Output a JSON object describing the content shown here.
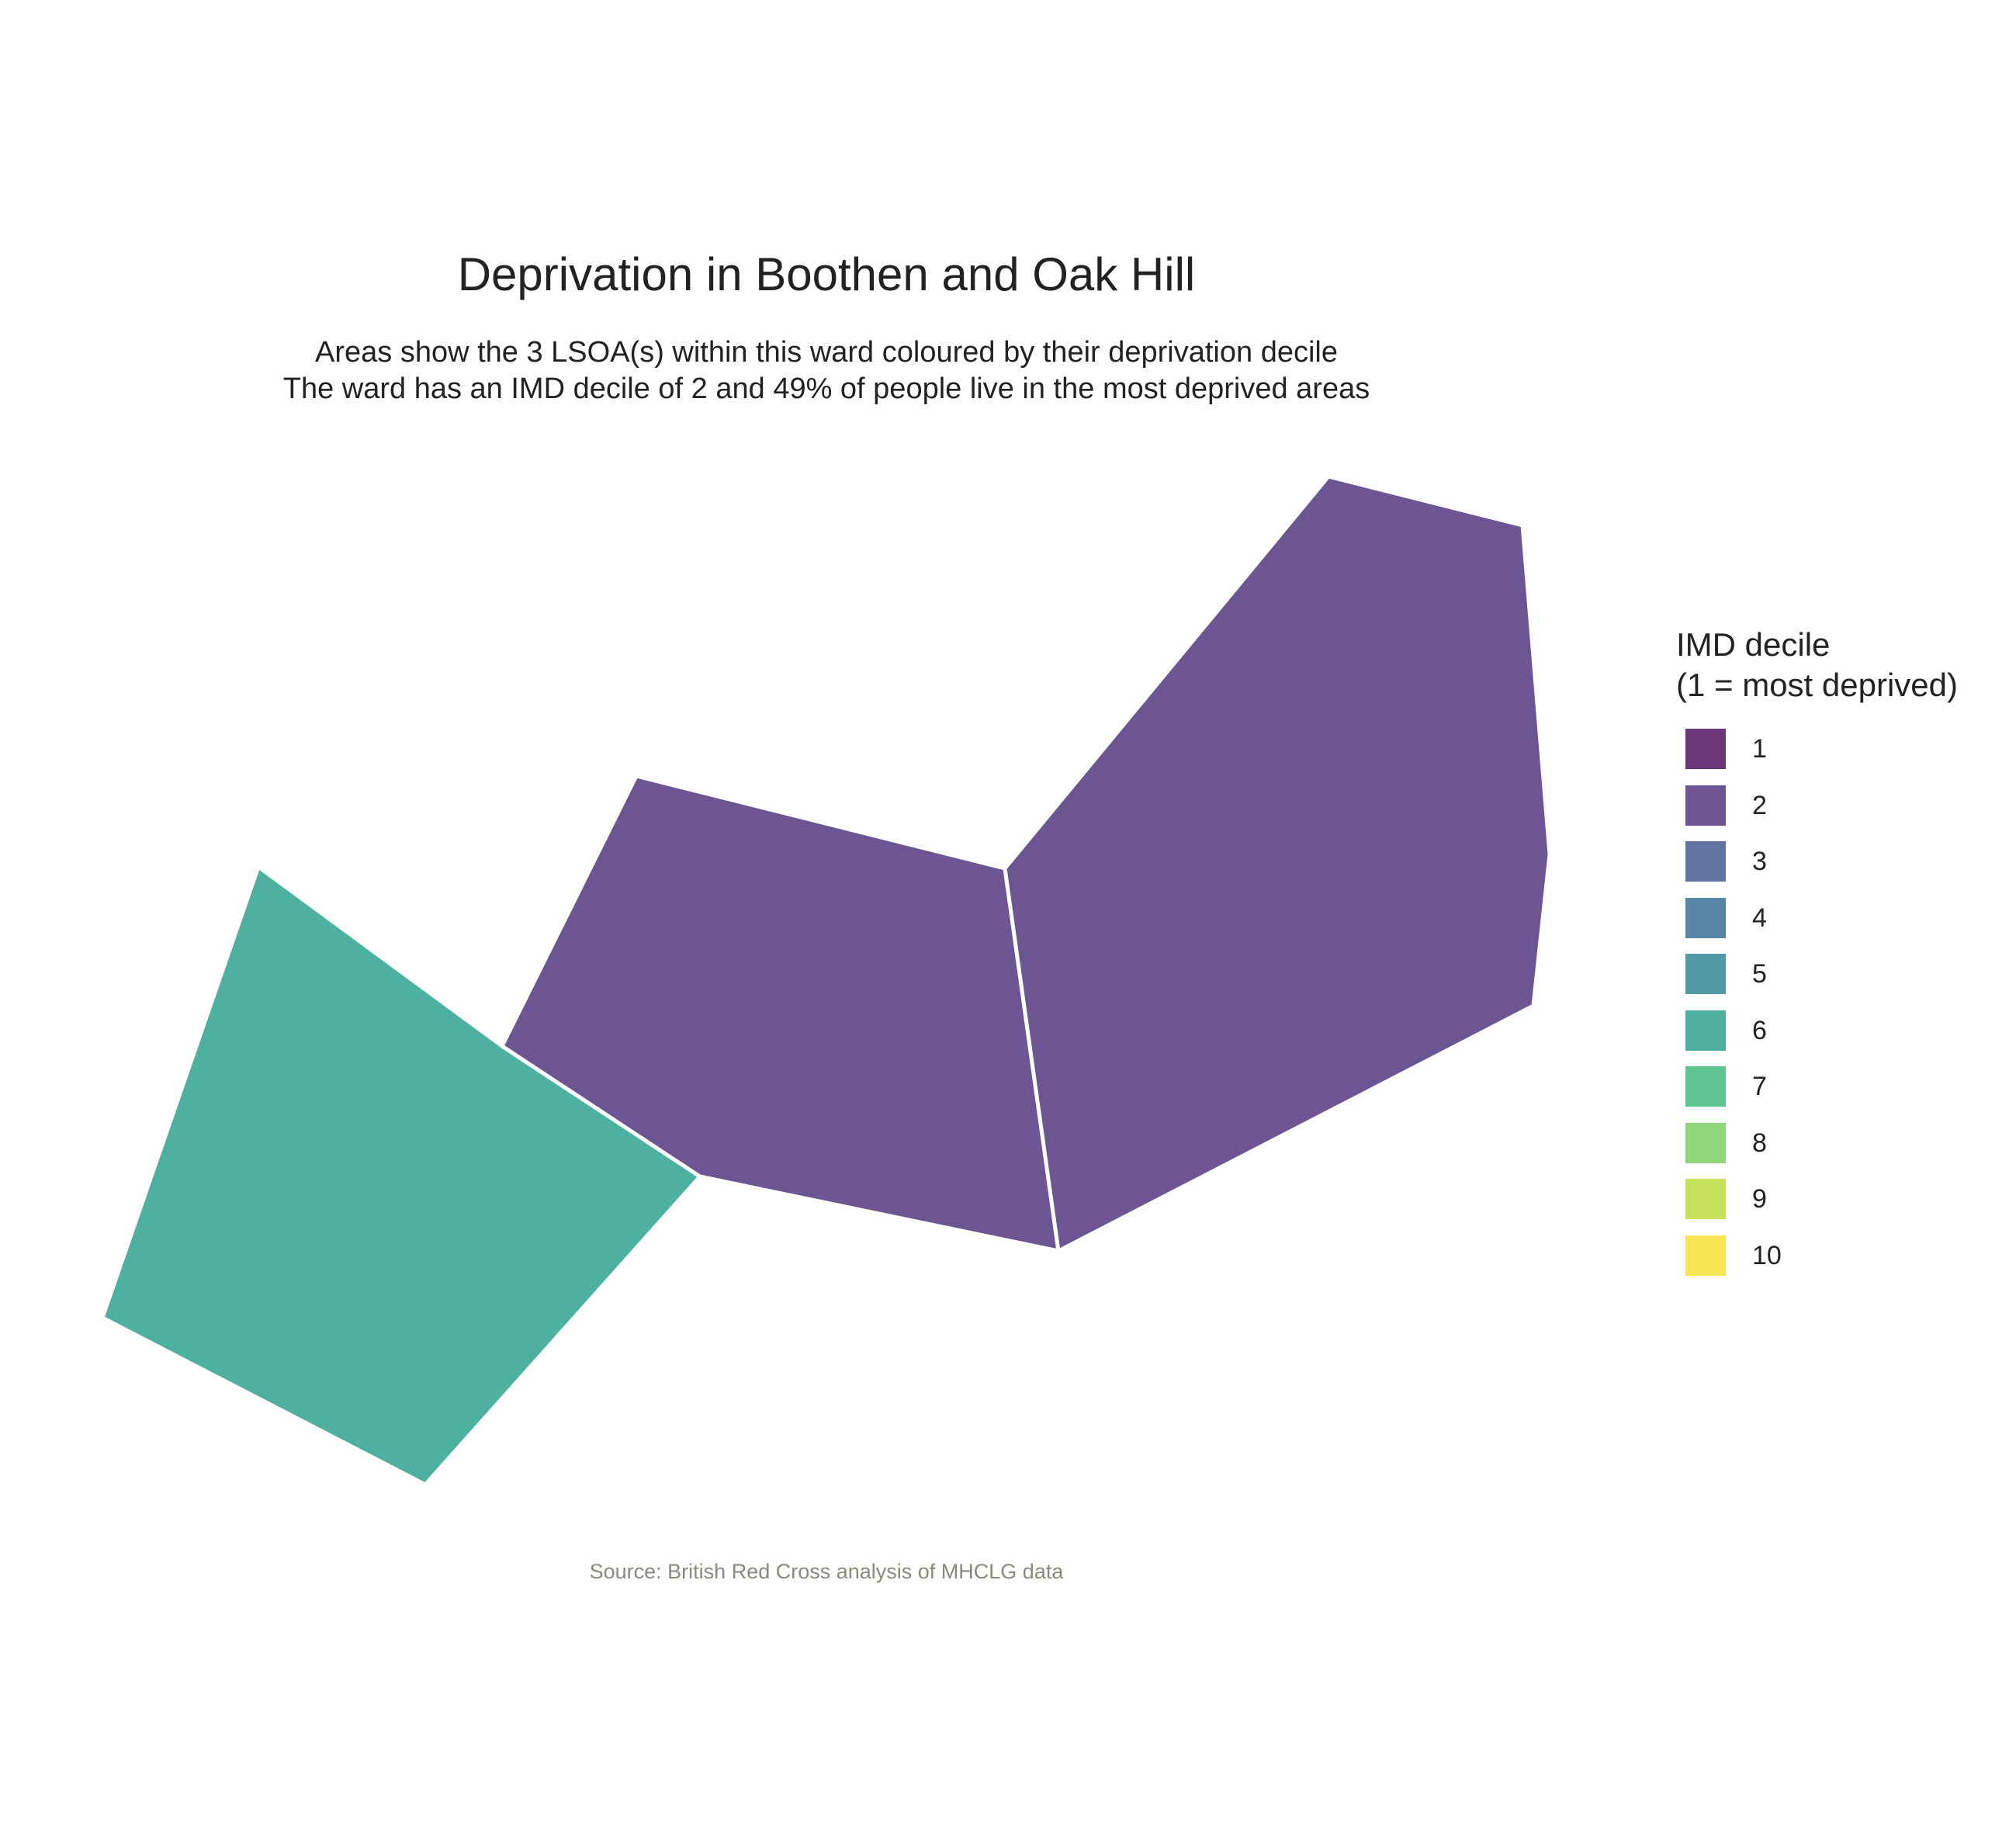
{
  "title": "Deprivation in Boothen and Oak Hill",
  "subtitle_line1": "Areas show the 3 LSOA(s) within this ward coloured by their deprivation decile",
  "subtitle_line2": "The ward has an IMD decile of 2 and 49% of people live in the most deprived areas",
  "caption": "Source: British Red Cross analysis of MHCLG data",
  "legend": {
    "title_line1": "IMD decile",
    "title_line2": "(1 = most deprived)",
    "items": [
      {
        "label": "1",
        "color": "#6a3878"
      },
      {
        "label": "2",
        "color": "#6d5593"
      },
      {
        "label": "3",
        "color": "#6273a0"
      },
      {
        "label": "4",
        "color": "#5986a6"
      },
      {
        "label": "5",
        "color": "#509aa5"
      },
      {
        "label": "6",
        "color": "#4db0a1"
      },
      {
        "label": "7",
        "color": "#5ec591"
      },
      {
        "label": "8",
        "color": "#8fd77d"
      },
      {
        "label": "9",
        "color": "#c6e25a"
      },
      {
        "label": "10",
        "color": "#f8e553"
      }
    ]
  },
  "chart_data": {
    "type": "choropleth",
    "ward": "Boothen and Oak Hill",
    "lsoa_count": 3,
    "ward_imd_decile": 2,
    "pct_most_deprived": 49,
    "areas": [
      {
        "decile": 6,
        "color": "#4db0a1"
      },
      {
        "decile": 2,
        "color": "#6d5593"
      },
      {
        "decile": 2,
        "color": "#6d5593"
      }
    ]
  }
}
